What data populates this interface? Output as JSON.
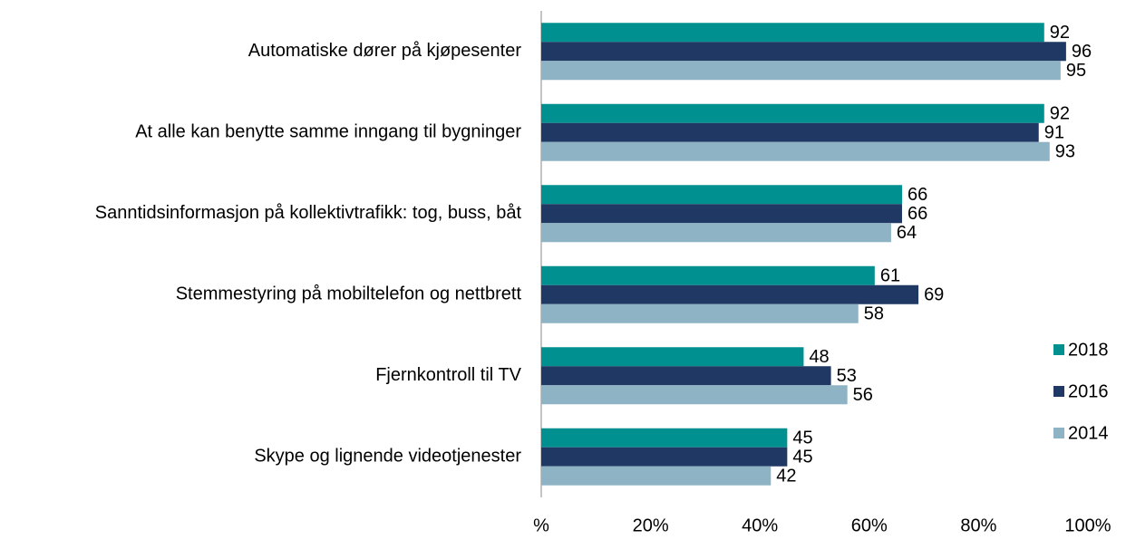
{
  "chart_data": {
    "type": "bar",
    "orientation": "horizontal",
    "categories": [
      "Automatiske dører på kjøpesenter",
      "At alle kan benytte samme inngang til bygninger",
      "Sanntidsinformasjon på kollektivtrafikk: tog, buss, båt",
      "Stemmestyring på mobiltelefon og nettbrett",
      "Fjernkontroll til TV",
      "Skype og lignende videotjenester"
    ],
    "series": [
      {
        "name": "2018",
        "color": "#009090",
        "values": [
          92,
          92,
          66,
          61,
          48,
          45
        ]
      },
      {
        "name": "2016",
        "color": "#1f3864",
        "values": [
          96,
          91,
          66,
          69,
          53,
          45
        ]
      },
      {
        "name": "2014",
        "color": "#8db3c4",
        "values": [
          95,
          93,
          64,
          58,
          56,
          42
        ]
      }
    ],
    "xlim": [
      0,
      100
    ],
    "xticks": [
      {
        "value": 0,
        "label": "%"
      },
      {
        "value": 20,
        "label": "20%"
      },
      {
        "value": 40,
        "label": "40%"
      },
      {
        "value": 60,
        "label": "60%"
      },
      {
        "value": 80,
        "label": "80%"
      },
      {
        "value": 100,
        "label": "100%"
      }
    ],
    "legend": "right",
    "grid": false
  }
}
